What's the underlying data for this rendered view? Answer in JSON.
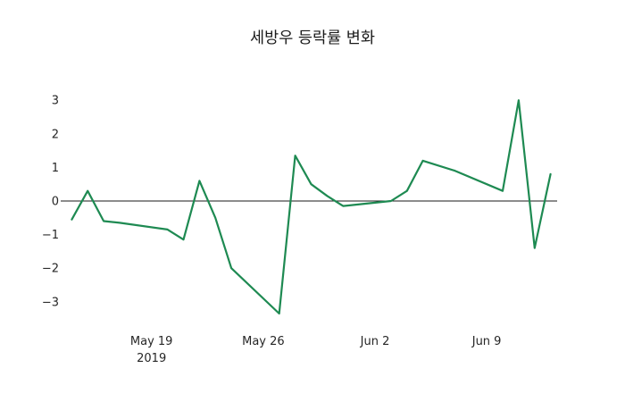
{
  "page": {
    "background": "#ffffff"
  },
  "chart_data": {
    "type": "line",
    "title": "세방우 등락률 변화",
    "xlabel": "",
    "ylabel": "",
    "legend": "none",
    "grid": false,
    "line_color": "#1e8a52",
    "zero_line_color": "#1a1a1a",
    "x_is_date": true,
    "xlim_days": [
      -0.3,
      30.3
    ],
    "ylim": [
      -3.75,
      3.35
    ],
    "points": [
      {
        "date": "2019-05-14",
        "day": 0,
        "value": -0.55
      },
      {
        "date": "2019-05-15",
        "day": 1,
        "value": 0.3
      },
      {
        "date": "2019-05-16",
        "day": 2,
        "value": -0.6
      },
      {
        "date": "2019-05-17",
        "day": 3,
        "value": -0.65
      },
      {
        "date": "2019-05-20",
        "day": 6,
        "value": -0.85
      },
      {
        "date": "2019-05-21",
        "day": 7,
        "value": -1.15
      },
      {
        "date": "2019-05-22",
        "day": 8,
        "value": 0.6
      },
      {
        "date": "2019-05-23",
        "day": 9,
        "value": -0.5
      },
      {
        "date": "2019-05-24",
        "day": 10,
        "value": -2.0
      },
      {
        "date": "2019-05-27",
        "day": 13,
        "value": -3.35
      },
      {
        "date": "2019-05-28",
        "day": 14,
        "value": 1.35
      },
      {
        "date": "2019-05-29",
        "day": 15,
        "value": 0.5
      },
      {
        "date": "2019-05-30",
        "day": 16,
        "value": 0.15
      },
      {
        "date": "2019-05-31",
        "day": 17,
        "value": -0.15
      },
      {
        "date": "2019-06-03",
        "day": 20,
        "value": 0.0
      },
      {
        "date": "2019-06-04",
        "day": 21,
        "value": 0.3
      },
      {
        "date": "2019-06-05",
        "day": 22,
        "value": 1.2
      },
      {
        "date": "2019-06-07",
        "day": 24,
        "value": 0.9
      },
      {
        "date": "2019-06-10",
        "day": 27,
        "value": 0.3
      },
      {
        "date": "2019-06-11",
        "day": 28,
        "value": 3.0
      },
      {
        "date": "2019-06-12",
        "day": 29,
        "value": -1.4
      },
      {
        "date": "2019-06-13",
        "day": 30,
        "value": 0.8
      }
    ],
    "x_ticks": [
      {
        "day": 5,
        "label": "May 19",
        "sublabel": "2019"
      },
      {
        "day": 12,
        "label": "May 26",
        "sublabel": ""
      },
      {
        "day": 19,
        "label": "Jun 2",
        "sublabel": ""
      },
      {
        "day": 26,
        "label": "Jun 9",
        "sublabel": ""
      }
    ],
    "y_ticks": [
      {
        "value": 3,
        "label": "3"
      },
      {
        "value": 2,
        "label": "2"
      },
      {
        "value": 1,
        "label": "1"
      },
      {
        "value": 0,
        "label": "0"
      },
      {
        "value": -1,
        "label": "−1"
      },
      {
        "value": -2,
        "label": "−2"
      },
      {
        "value": -3,
        "label": "−3"
      }
    ]
  }
}
